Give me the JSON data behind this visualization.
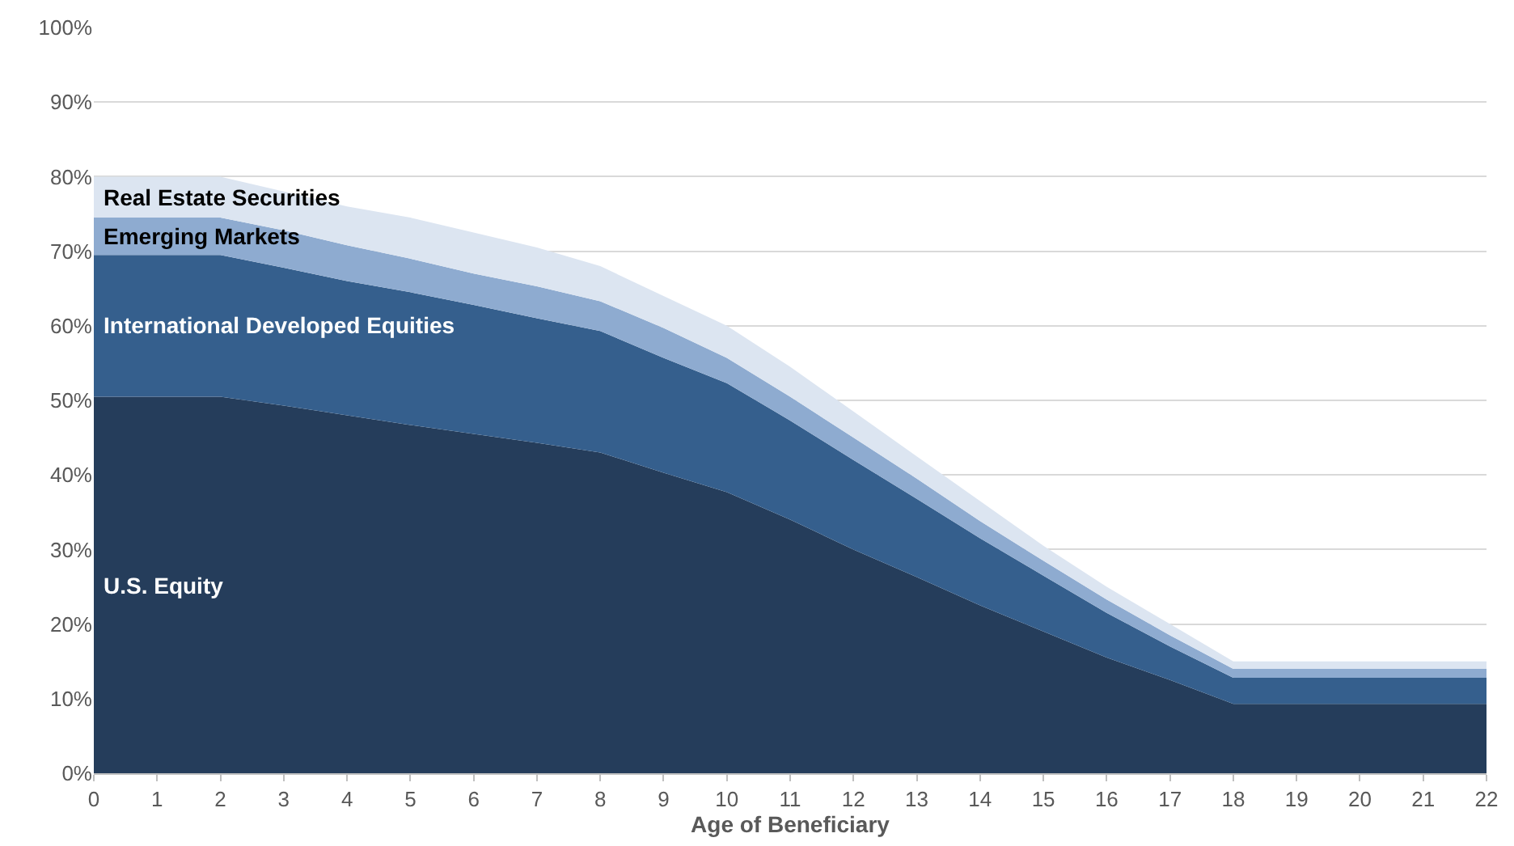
{
  "chart_data": {
    "type": "area",
    "stacked": true,
    "xlabel": "Age of Beneficiary",
    "x": [
      0,
      1,
      2,
      3,
      4,
      5,
      6,
      7,
      8,
      9,
      10,
      11,
      12,
      13,
      14,
      15,
      16,
      17,
      18,
      19,
      20,
      21,
      22
    ],
    "series": [
      {
        "name": "U.S. Equity",
        "color": "#253d5b",
        "values": [
          50.5,
          50.5,
          50.5,
          49.3,
          48,
          46.7,
          45.5,
          44.3,
          43,
          40.3,
          37.7,
          34,
          30,
          26.3,
          22.5,
          19,
          15.5,
          12.5,
          9.3,
          9.3,
          9.3,
          9.3,
          9.3
        ]
      },
      {
        "name": "International Developed Equities",
        "color": "#355f8d",
        "values": [
          19,
          19,
          19,
          18.5,
          18,
          17.8,
          17.3,
          16.7,
          16.3,
          15.4,
          14.6,
          13.3,
          12,
          10.5,
          9,
          7.5,
          6,
          4.5,
          3.5,
          3.5,
          3.5,
          3.5,
          3.5
        ]
      },
      {
        "name": "Emerging Markets",
        "color": "#8eabd0",
        "values": [
          5,
          5,
          5,
          5,
          4.8,
          4.5,
          4.2,
          4.3,
          4,
          4,
          3.4,
          3.2,
          3,
          2.7,
          2.3,
          2,
          1.8,
          1.5,
          1.2,
          1.2,
          1.2,
          1.2,
          1.2
        ]
      },
      {
        "name": "Real Estate Securities",
        "color": "#dce5f1",
        "values": [
          5.5,
          5.5,
          5.5,
          5.2,
          5.2,
          5.5,
          5.5,
          5.2,
          4.7,
          4.3,
          4.3,
          4,
          3.5,
          3,
          2.7,
          2,
          1.7,
          1.5,
          1,
          1,
          1,
          1,
          1
        ]
      }
    ],
    "xlim": [
      0,
      22
    ],
    "xticks": [
      0,
      1,
      2,
      3,
      4,
      5,
      6,
      7,
      8,
      9,
      10,
      11,
      12,
      13,
      14,
      15,
      16,
      17,
      18,
      19,
      20,
      21,
      22
    ],
    "ylim": [
      0,
      100
    ],
    "yticks": [
      {
        "value": 0,
        "label": "0%"
      },
      {
        "value": 10,
        "label": "10%"
      },
      {
        "value": 20,
        "label": "20%"
      },
      {
        "value": 30,
        "label": "30%"
      },
      {
        "value": 40,
        "label": "40%"
      },
      {
        "value": 50,
        "label": "50%"
      },
      {
        "value": 60,
        "label": "60%"
      },
      {
        "value": 70,
        "label": "70%"
      },
      {
        "value": 80,
        "label": "80%"
      },
      {
        "value": 90,
        "label": "90%"
      },
      {
        "value": 100,
        "label": "100%"
      }
    ],
    "grid": "y",
    "legend": false
  }
}
